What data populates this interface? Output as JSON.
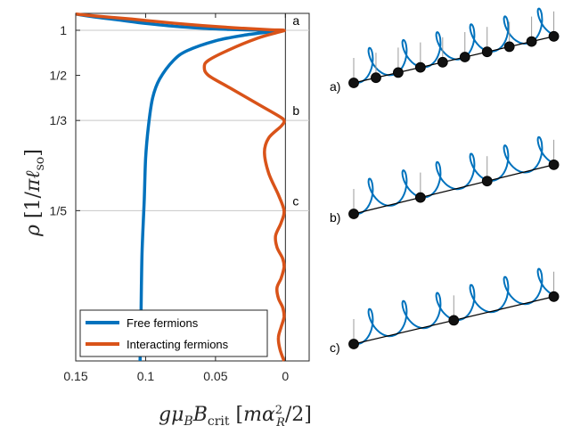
{
  "chart_data": {
    "type": "line",
    "xlabel": "gμ_B B_crit [mα_R^2/2]",
    "ylabel": "ρ [1/πℓ_so]",
    "x_reversed": true,
    "xlim": [
      0.15,
      -0.017
    ],
    "xticks": [
      {
        "value": 0.15,
        "label": "0.15"
      },
      {
        "value": 0.1,
        "label": "0.1"
      },
      {
        "value": 0.05,
        "label": "0.05"
      },
      {
        "value": 0,
        "label": "0"
      }
    ],
    "y_scale": "reciprocal",
    "ylim": [
      0.12,
      1.6
    ],
    "yticks": [
      {
        "value": 1,
        "label": "1"
      },
      {
        "value": 0.5,
        "label": "1/2"
      },
      {
        "value": 0.3333,
        "label": "1/3"
      },
      {
        "value": 0.2,
        "label": "1/5"
      }
    ],
    "grid_lines_y": [
      1,
      0.3333,
      0.2
    ],
    "markers": [
      {
        "label": "a",
        "y": 1
      },
      {
        "label": "b",
        "y": 0.3333
      },
      {
        "label": "c",
        "y": 0.2
      }
    ],
    "series": [
      {
        "name": "Free fermions",
        "color": "#0072BD",
        "points": [
          [
            0.15,
            1.56
          ],
          [
            0.14,
            1.45
          ],
          [
            0.12,
            1.3
          ],
          [
            0.1,
            1.18
          ],
          [
            0.08,
            1.1
          ],
          [
            0.06,
            1.05
          ],
          [
            0.04,
            1.02
          ],
          [
            0.02,
            1.005
          ],
          [
            0.003,
            1.0
          ],
          [
            0.01,
            0.97
          ],
          [
            0.03,
            0.9
          ],
          [
            0.05,
            0.81
          ],
          [
            0.07,
            0.69
          ],
          [
            0.08,
            0.6
          ],
          [
            0.09,
            0.48
          ],
          [
            0.095,
            0.4
          ],
          [
            0.098,
            0.32
          ],
          [
            0.1,
            0.26
          ],
          [
            0.101,
            0.21
          ],
          [
            0.1025,
            0.17
          ],
          [
            0.103,
            0.15
          ],
          [
            0.1035,
            0.13
          ],
          [
            0.104,
            0.12
          ]
        ]
      },
      {
        "name": "Interacting fermions",
        "color": "#D95319",
        "points": [
          [
            0.15,
            1.56
          ],
          [
            0.13,
            1.43
          ],
          [
            0.11,
            1.33
          ],
          [
            0.09,
            1.23
          ],
          [
            0.07,
            1.15
          ],
          [
            0.05,
            1.09
          ],
          [
            0.03,
            1.045
          ],
          [
            0.01,
            1.01
          ],
          [
            0.001,
            1.0
          ],
          [
            0.005,
            0.96
          ],
          [
            0.02,
            0.85
          ],
          [
            0.04,
            0.7
          ],
          [
            0.055,
            0.6
          ],
          [
            0.058,
            0.55
          ],
          [
            0.055,
            0.5
          ],
          [
            0.04,
            0.44
          ],
          [
            0.02,
            0.38
          ],
          [
            0.005,
            0.345
          ],
          [
            0.001,
            0.3333
          ],
          [
            0.003,
            0.32
          ],
          [
            0.012,
            0.295
          ],
          [
            0.015,
            0.27
          ],
          [
            0.012,
            0.24
          ],
          [
            0.005,
            0.215
          ],
          [
            0.001,
            0.2
          ],
          [
            0.003,
            0.19
          ],
          [
            0.007,
            0.18
          ],
          [
            0.006,
            0.172
          ],
          [
            0.002,
            0.165
          ],
          [
            0.001,
            0.16
          ],
          [
            0.003,
            0.154
          ],
          [
            0.006,
            0.149
          ],
          [
            0.005,
            0.144
          ],
          [
            0.002,
            0.14
          ],
          [
            0.001,
            0.136
          ],
          [
            0.003,
            0.132
          ],
          [
            0.005,
            0.128
          ],
          [
            0.004,
            0.124
          ],
          [
            0.001,
            0.12
          ]
        ]
      }
    ],
    "legend": {
      "position": "bottom-left",
      "entries": [
        "Free fermions",
        "Interacting fermions"
      ]
    }
  },
  "panels": [
    {
      "label": "a)",
      "atoms": 10
    },
    {
      "label": "b)",
      "atoms": 4
    },
    {
      "label": "c)",
      "atoms": 3
    }
  ],
  "colors": {
    "helix": "#0072BD",
    "free": "#0072BD",
    "interacting": "#D95319",
    "grid": "#c8c8c8"
  }
}
